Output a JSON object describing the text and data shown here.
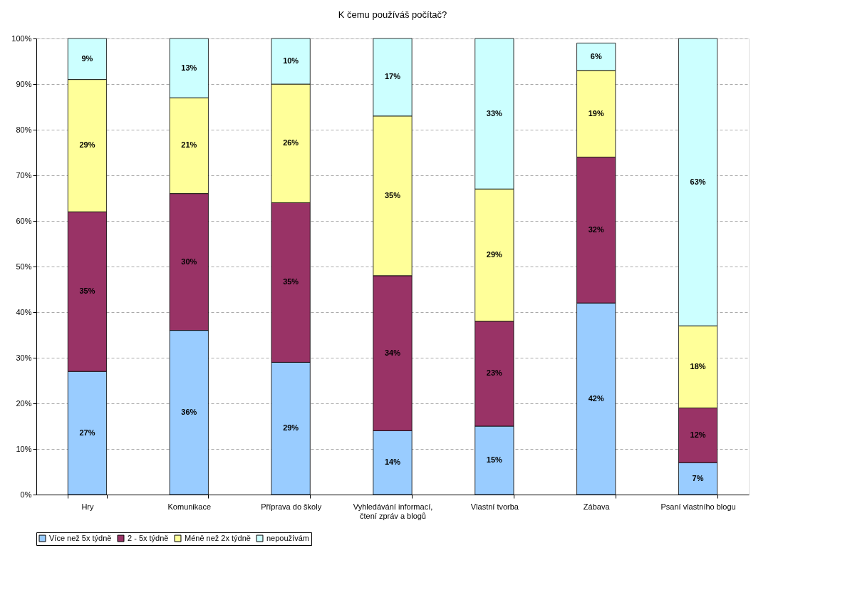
{
  "chart_data": {
    "type": "bar",
    "title": "K čemu používáš počítač?",
    "stacked": true,
    "categories": [
      "Hry",
      "Komunikace",
      "Příprava do školy",
      "Vyhledávání informací, čtení zpráv a blogů",
      "Vlastní tvorba",
      "Zábava",
      "Psaní vlastního blogu"
    ],
    "series": [
      {
        "name": "Více než 5x týdně",
        "color": "#99ccff",
        "values": [
          27,
          36,
          29,
          14,
          15,
          42,
          7
        ],
        "value_labels": [
          "27%",
          "36%",
          "29%",
          "14%",
          "15%",
          "42%",
          "7%"
        ]
      },
      {
        "name": "2 - 5x týdně",
        "color": "#993366",
        "values": [
          35,
          30,
          35,
          34,
          23,
          32,
          12
        ],
        "value_labels": [
          "35%",
          "30%",
          "35%",
          "34%",
          "23%",
          "32%",
          "12%"
        ]
      },
      {
        "name": "Méně než 2x týdně",
        "color": "#ffff99",
        "values": [
          29,
          21,
          26,
          35,
          29,
          19,
          18
        ],
        "value_labels": [
          "29%",
          "21%",
          "26%",
          "35%",
          "29%",
          "19%",
          "18%"
        ]
      },
      {
        "name": "nepoužívám",
        "color": "#ccffff",
        "values": [
          9,
          13,
          10,
          17,
          33,
          6,
          63
        ],
        "value_labels": [
          "9%",
          "13%",
          "10%",
          "17%",
          "33%",
          "6%",
          "63%"
        ]
      }
    ],
    "ylim": [
      0,
      100
    ],
    "yticks": [
      {
        "value": 0,
        "label": "0%"
      },
      {
        "value": 10,
        "label": "10%"
      },
      {
        "value": 20,
        "label": "20%"
      },
      {
        "value": 30,
        "label": "30%"
      },
      {
        "value": 40,
        "label": "40%"
      },
      {
        "value": 50,
        "label": "50%"
      },
      {
        "value": 60,
        "label": "60%"
      },
      {
        "value": 70,
        "label": "70%"
      },
      {
        "value": 80,
        "label": "80%"
      },
      {
        "value": 90,
        "label": "90%"
      },
      {
        "value": 100,
        "label": "100%"
      }
    ],
    "grid": "y",
    "legend": "bottom"
  }
}
